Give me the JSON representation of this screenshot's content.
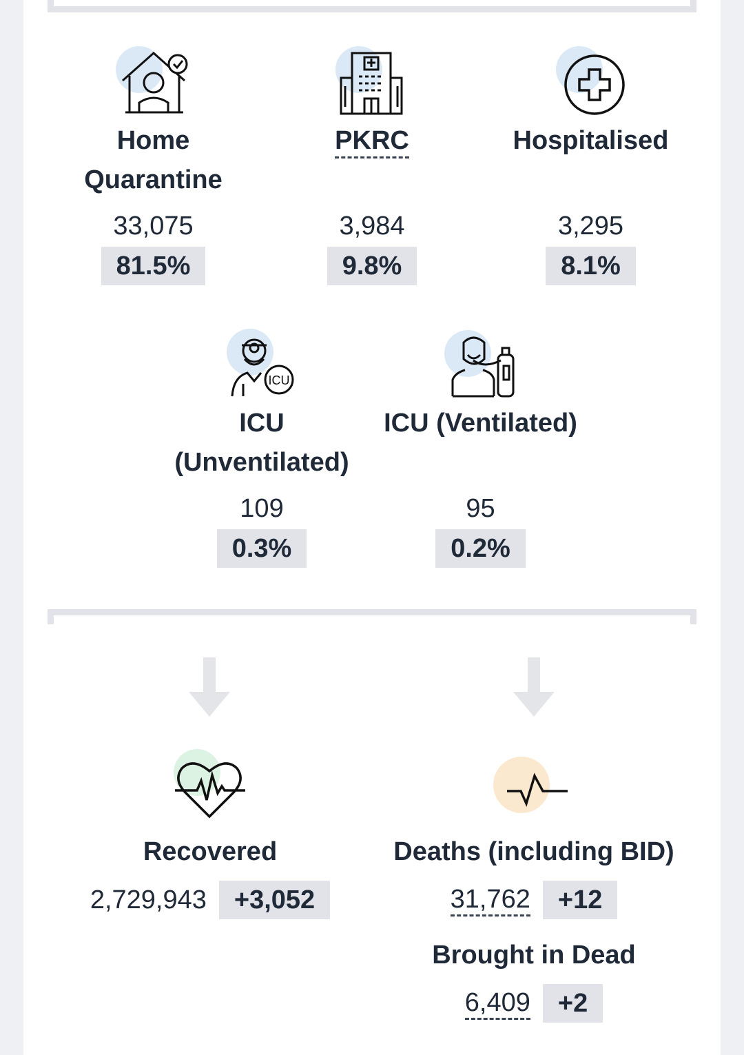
{
  "stats": [
    {
      "id": "home",
      "label_line1": "Home",
      "label_line2": "Quarantine",
      "value": "33,075",
      "pct": "81.5%"
    },
    {
      "id": "pkrc",
      "label_line1": "PKRC",
      "value": "3,984",
      "pct": "9.8%"
    },
    {
      "id": "hosp",
      "label_line1": "Hospitalised",
      "value": "3,295",
      "pct": "8.1%"
    },
    {
      "id": "icu_unvent",
      "label_line1": "ICU",
      "label_line2": "(Unventilated)",
      "value": "109",
      "pct": "0.3%"
    },
    {
      "id": "icu_vent",
      "label_line1": "ICU (Ventilated)",
      "value": "95",
      "pct": "0.2%"
    }
  ],
  "outcomes": {
    "recovered": {
      "label": "Recovered",
      "value": "2,729,943",
      "delta": "+3,052"
    },
    "deaths": {
      "label": "Deaths (including BID)",
      "value": "31,762",
      "delta": "+12"
    },
    "bid": {
      "label": "Brought in Dead",
      "value": "6,409",
      "delta": "+2"
    }
  },
  "icons": [
    "home-quarantine-icon",
    "hospital-building-icon",
    "medical-cross-icon",
    "icu-doctor-icon",
    "ventilator-patient-icon",
    "heart-pulse-icon",
    "pulse-line-icon",
    "down-arrow-icon"
  ],
  "colors": {
    "icon_blue_bg": "#dbe9f7",
    "icon_green_bg": "#dcf3e4",
    "icon_orange_bg": "#fbe9cf",
    "badge_bg": "#e1e3e8",
    "arrow": "#e3e5e8"
  }
}
